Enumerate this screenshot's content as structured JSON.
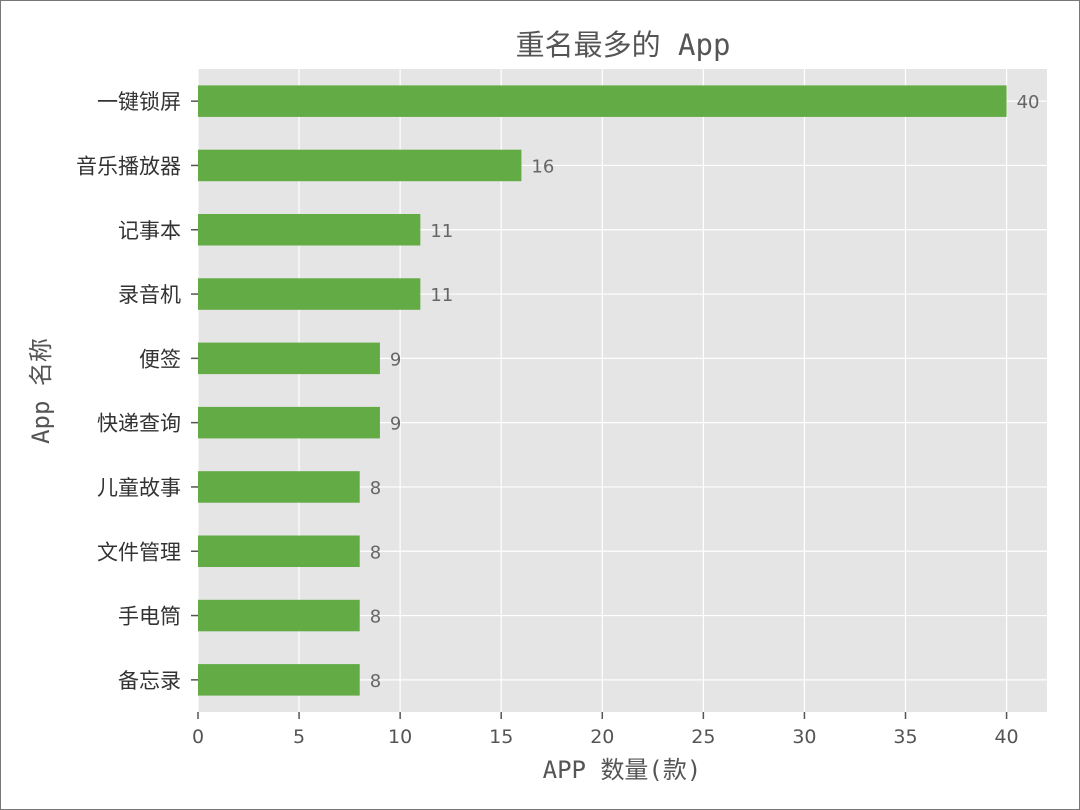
{
  "chart_data": {
    "type": "bar",
    "orientation": "horizontal",
    "title": "重名最多的 App",
    "xlabel": "APP 数量(款)",
    "ylabel": "App 名称",
    "categories": [
      "一键锁屏",
      "音乐播放器",
      "记事本",
      "录音机",
      "便签",
      "快递查询",
      "儿童故事",
      "文件管理",
      "手电筒",
      "备忘录"
    ],
    "values": [
      40,
      16,
      11,
      11,
      9,
      9,
      8,
      8,
      8,
      8
    ],
    "data_labels": [
      "40",
      "16",
      "11",
      "11",
      "9",
      "9",
      "8",
      "8",
      "8",
      "8"
    ],
    "xlim": [
      0,
      42
    ],
    "xticks": [
      0,
      5,
      10,
      15,
      20,
      25,
      30,
      35,
      40
    ],
    "xtick_labels": [
      "0",
      "5",
      "10",
      "15",
      "20",
      "25",
      "30",
      "35",
      "40"
    ],
    "grid": true,
    "bar_color": "#62ab45",
    "plot_background": "#e5e5e5",
    "grid_color": "#ffffff"
  }
}
